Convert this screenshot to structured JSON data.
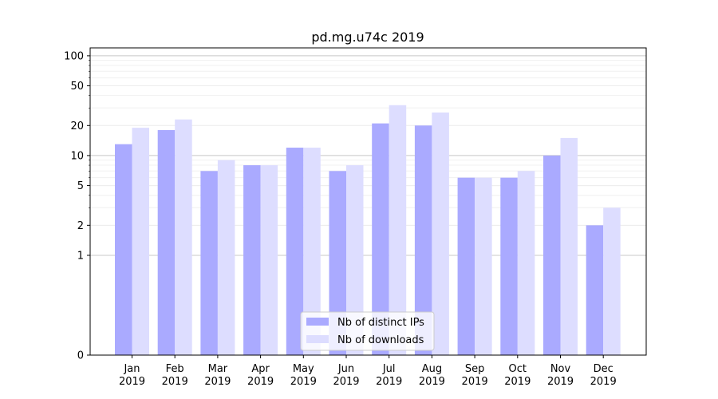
{
  "chart_data": {
    "type": "bar",
    "title": "pd.mg.u74c 2019",
    "xlabel": "",
    "ylabel": "",
    "scale": "symlog",
    "ylim": [
      0,
      120
    ],
    "yticks": [
      0,
      1,
      2,
      5,
      10,
      20,
      50,
      100
    ],
    "grid": true,
    "legend_position": "bottom-center",
    "categories": [
      [
        "Jan",
        "2019"
      ],
      [
        "Feb",
        "2019"
      ],
      [
        "Mar",
        "2019"
      ],
      [
        "Apr",
        "2019"
      ],
      [
        "May",
        "2019"
      ],
      [
        "Jun",
        "2019"
      ],
      [
        "Jul",
        "2019"
      ],
      [
        "Aug",
        "2019"
      ],
      [
        "Sep",
        "2019"
      ],
      [
        "Oct",
        "2019"
      ],
      [
        "Nov",
        "2019"
      ],
      [
        "Dec",
        "2019"
      ]
    ],
    "series": [
      {
        "name": "Nb of distinct IPs",
        "color": "#aaaaff",
        "values": [
          13,
          18,
          7,
          8,
          12,
          7,
          21,
          20,
          6,
          6,
          10,
          2
        ]
      },
      {
        "name": "Nb of downloads",
        "color": "#ddddff",
        "values": [
          19,
          23,
          9,
          8,
          12,
          8,
          32,
          27,
          6,
          7,
          15,
          3
        ]
      }
    ]
  }
}
